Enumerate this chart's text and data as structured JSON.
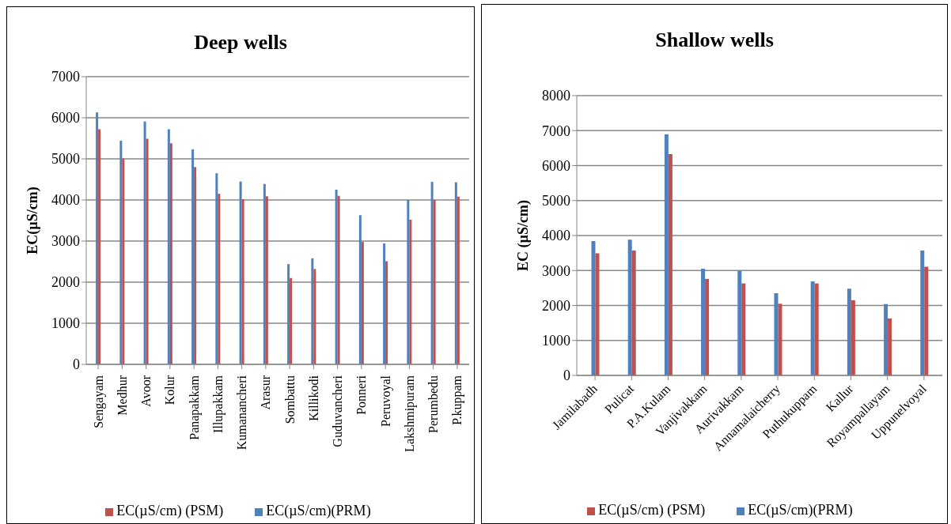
{
  "chart_data": [
    {
      "type": "bar",
      "title": "Deep wells",
      "ylabel": "EC(µS/cm)",
      "categories": [
        "Sengayam",
        "Medhur",
        "Avoor",
        "Kolur",
        "Panapakkam",
        "Illupakkam",
        "Kumanancheri",
        "Arasur",
        "Sombattu",
        "Killikodi",
        "Guduvancheri",
        "Ponneri",
        "Peruvoyal",
        "Lakshmipuram",
        "Perumbedu",
        "P.kuppam"
      ],
      "series": [
        {
          "name": "EC(µS/cm)(PRM)",
          "color": "#4f81bd",
          "values": [
            6130,
            5440,
            5910,
            5720,
            5230,
            4650,
            4450,
            4390,
            2440,
            2580,
            4250,
            3630,
            2940,
            4000,
            4440,
            4430
          ]
        },
        {
          "name": "EC(µS/cm) (PSM)",
          "color": "#c0504d",
          "values": [
            5720,
            5010,
            5490,
            5380,
            4800,
            4150,
            4020,
            4090,
            2100,
            2320,
            4100,
            2980,
            2510,
            3520,
            4000,
            4080
          ]
        }
      ],
      "ylim": [
        0,
        7000
      ],
      "yticks": [
        0,
        1000,
        2000,
        3000,
        4000,
        5000,
        6000,
        7000
      ],
      "grid": "y",
      "legend": "bottom"
    },
    {
      "type": "bar",
      "title": "Shallow wells",
      "ylabel": "EC (µS/cm)",
      "categories": [
        "Jamilabadh",
        "Pulicat",
        "P.A.Kulam",
        "Vanjivakkam",
        "Aurivakkam",
        "Annamalaicherry",
        "Puthukuppam",
        "Kallur",
        "Royampallayam",
        "Uppunelvoyal"
      ],
      "series": [
        {
          "name": "EC(µS/cm)(PRM)",
          "color": "#4f81bd",
          "values": [
            3840,
            3880,
            6890,
            3050,
            2990,
            2350,
            2690,
            2480,
            2040,
            3570
          ]
        },
        {
          "name": "EC(µS/cm) (PSM)",
          "color": "#c0504d",
          "values": [
            3490,
            3570,
            6330,
            2760,
            2630,
            2050,
            2630,
            2150,
            1630,
            3110
          ]
        }
      ],
      "ylim": [
        0,
        8000
      ],
      "yticks": [
        0,
        1000,
        2000,
        3000,
        4000,
        5000,
        6000,
        7000,
        8000
      ],
      "grid": "y",
      "legend": "bottom"
    }
  ]
}
